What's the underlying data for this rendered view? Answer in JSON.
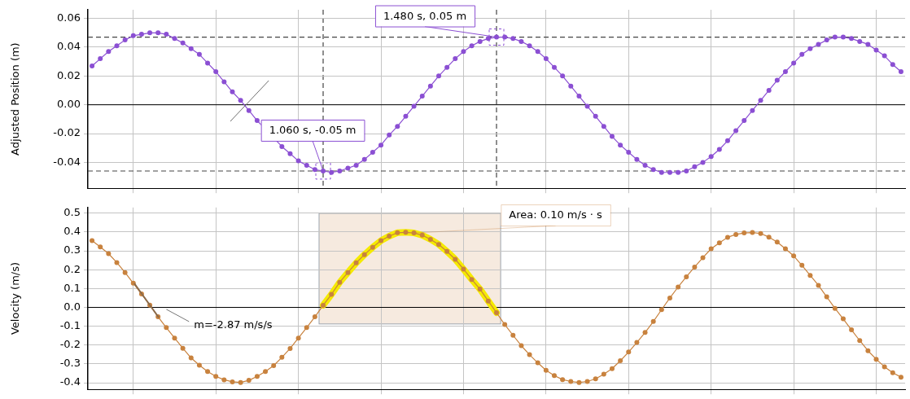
{
  "chart_data": [
    {
      "type": "line",
      "ylabel": "Adjusted Position (m)",
      "categories": [
        null,
        null,
        null,
        null,
        null,
        null,
        null,
        null,
        null,
        null,
        null,
        null,
        null,
        null,
        null,
        null,
        null,
        null,
        null,
        null,
        null,
        null,
        null,
        null,
        null,
        null,
        null,
        null,
        null,
        null,
        null,
        null,
        null,
        null,
        null,
        null,
        null,
        null,
        null,
        null,
        null,
        null,
        null,
        null,
        null,
        null,
        null,
        null,
        null,
        null,
        null,
        null,
        null,
        null,
        null,
        null,
        null,
        null,
        null,
        null,
        null,
        null,
        null,
        null,
        null,
        null,
        null,
        null,
        null,
        null,
        null,
        null,
        null,
        null,
        null,
        null,
        null,
        null,
        null,
        null,
        null,
        null,
        null,
        null,
        null,
        null,
        null,
        null,
        null,
        null,
        null,
        null,
        null,
        null,
        null,
        null,
        null,
        null,
        null
      ],
      "series": [
        {
          "color": "#8b4fd3",
          "values": [
            0.027,
            0.032,
            0.037,
            0.041,
            0.045,
            0.048,
            0.049,
            0.05,
            0.05,
            0.049,
            0.046,
            0.043,
            0.039,
            0.035,
            0.029,
            0.023,
            0.016,
            0.009,
            0.003,
            -0.004,
            -0.011,
            null,
            null,
            -0.029,
            -0.034,
            -0.039,
            -0.042,
            -0.045,
            -0.046,
            -0.047,
            -0.046,
            -0.044,
            -0.042,
            -0.038,
            -0.033,
            -0.028,
            -0.021,
            -0.015,
            -0.008,
            -0.001,
            0.006,
            0.013,
            0.02,
            0.026,
            0.032,
            0.037,
            0.041,
            0.044,
            0.046,
            0.047,
            0.047,
            0.046,
            0.044,
            0.041,
            0.037,
            0.032,
            0.026,
            0.02,
            0.013,
            0.006,
            -0.001,
            -0.008,
            -0.015,
            -0.022,
            -0.028,
            -0.033,
            -0.038,
            -0.042,
            -0.045,
            -0.047,
            -0.047,
            -0.047,
            -0.046,
            -0.043,
            -0.04,
            -0.036,
            -0.031,
            -0.025,
            -0.018,
            -0.011,
            -0.004,
            0.003,
            0.01,
            0.017,
            0.023,
            0.029,
            0.035,
            0.039,
            0.042,
            0.045,
            0.047,
            0.047,
            0.046,
            0.044,
            0.042,
            0.038,
            0.034,
            0.028,
            0.023
          ]
        }
      ],
      "ylim": [
        -0.058,
        0.066
      ],
      "yticks": [
        -0.04,
        -0.02,
        {
          "value": 0,
          "label": "0.00"
        },
        0.02,
        0.04,
        0.06
      ],
      "tick_labels": "y",
      "grid": true,
      "marker": "circle",
      "ref_lines": [
        {
          "axis": "y",
          "value": 0,
          "color": "#000000",
          "line_style": "solid"
        },
        {
          "axis": "y",
          "value": 0.047,
          "color": "#444444",
          "line_style": "dashed"
        },
        {
          "axis": "y",
          "value": -0.046,
          "color": "#444444",
          "line_style": "dashed"
        }
      ],
      "annotations": [
        "1.480 s, 0.05 m",
        "1.060 s, -0.05 m"
      ]
    },
    {
      "type": "line",
      "ylabel": "Velocity (m/s)",
      "categories": [
        null,
        null,
        null,
        null,
        null,
        null,
        null,
        null,
        null,
        null,
        null,
        null,
        null,
        null,
        null,
        null,
        null,
        null,
        null,
        null,
        null,
        null,
        null,
        null,
        null,
        null,
        null,
        null,
        null,
        null,
        null,
        null,
        null,
        null,
        null,
        null,
        null,
        null,
        null,
        null,
        null,
        null,
        null,
        null,
        null,
        null,
        null,
        null,
        null,
        null,
        null,
        null,
        null,
        null,
        null,
        null,
        null,
        null,
        null,
        null,
        null,
        null,
        null,
        null,
        null,
        null,
        null,
        null,
        null,
        null,
        null,
        null,
        null,
        null,
        null,
        null,
        null,
        null,
        null,
        null,
        null,
        null,
        null,
        null,
        null,
        null,
        null,
        null,
        null,
        null,
        null,
        null,
        null,
        null,
        null,
        null,
        null,
        null,
        null
      ],
      "series": [
        {
          "color": "#c8823e",
          "values": [
            0.354,
            0.321,
            0.285,
            0.238,
            0.185,
            0.128,
            0.071,
            0.012,
            -0.05,
            -0.107,
            -0.163,
            -0.217,
            -0.268,
            -0.307,
            -0.34,
            -0.366,
            -0.384,
            -0.395,
            -0.398,
            -0.387,
            -0.366,
            -0.34,
            -0.309,
            -0.265,
            -0.218,
            -0.163,
            -0.107,
            -0.05,
            0.011,
            0.069,
            0.133,
            0.185,
            0.236,
            0.28,
            0.319,
            0.354,
            0.378,
            0.396,
            0.398,
            0.395,
            0.383,
            0.361,
            0.334,
            0.297,
            0.255,
            0.203,
            0.148,
            0.097,
            0.034,
            -0.028,
            -0.091,
            -0.148,
            -0.203,
            -0.251,
            -0.294,
            -0.334,
            -0.362,
            -0.383,
            -0.393,
            -0.398,
            -0.393,
            -0.379,
            -0.354,
            -0.325,
            -0.283,
            -0.237,
            -0.186,
            -0.133,
            -0.075,
            -0.012,
            0.05,
            0.108,
            0.162,
            0.214,
            0.264,
            0.311,
            0.342,
            0.372,
            0.387,
            0.395,
            0.397,
            0.392,
            0.373,
            0.347,
            0.311,
            0.273,
            0.223,
            0.17,
            0.117,
            0.056,
            -0.005,
            -0.061,
            -0.119,
            -0.176,
            -0.23,
            -0.275,
            -0.315,
            -0.347,
            -0.37
          ]
        },
        {
          "type": "line",
          "color": "#f5ea00",
          "marker": "none",
          "values": [
            null,
            null,
            null,
            null,
            null,
            null,
            null,
            null,
            null,
            null,
            null,
            null,
            null,
            null,
            null,
            null,
            null,
            null,
            null,
            null,
            null,
            null,
            null,
            null,
            null,
            null,
            null,
            null,
            0.011,
            0.069,
            0.133,
            0.185,
            0.236,
            0.28,
            0.319,
            0.354,
            0.378,
            0.396,
            0.398,
            0.395,
            0.383,
            0.361,
            0.334,
            0.297,
            0.255,
            0.203,
            0.148,
            0.097,
            0.034,
            -0.028,
            null,
            null,
            null,
            null,
            null,
            null,
            null,
            null,
            null,
            null,
            null,
            null,
            null,
            null,
            null,
            null,
            null,
            null,
            null,
            null,
            null,
            null,
            null,
            null,
            null,
            null,
            null,
            null,
            null,
            null,
            null,
            null,
            null,
            null,
            null,
            null,
            null,
            null,
            null,
            null,
            null,
            null,
            null,
            null,
            null,
            null,
            null,
            null,
            null
          ]
        }
      ],
      "ylim": [
        -0.435,
        0.53
      ],
      "yticks": [
        -0.4,
        -0.3,
        -0.2,
        -0.1,
        {
          "value": 0,
          "label": "0.0"
        },
        0.1,
        0.2,
        0.3,
        0.4,
        0.5
      ],
      "tick_labels": "y",
      "grid": true,
      "marker": "circle",
      "ref_lines": [
        {
          "axis": "y",
          "value": 0,
          "color": "#000000",
          "line_style": "solid"
        }
      ],
      "annotations": [
        "Area: 0.10 m/s · s",
        "m=-2.87 m/s/s"
      ]
    }
  ]
}
